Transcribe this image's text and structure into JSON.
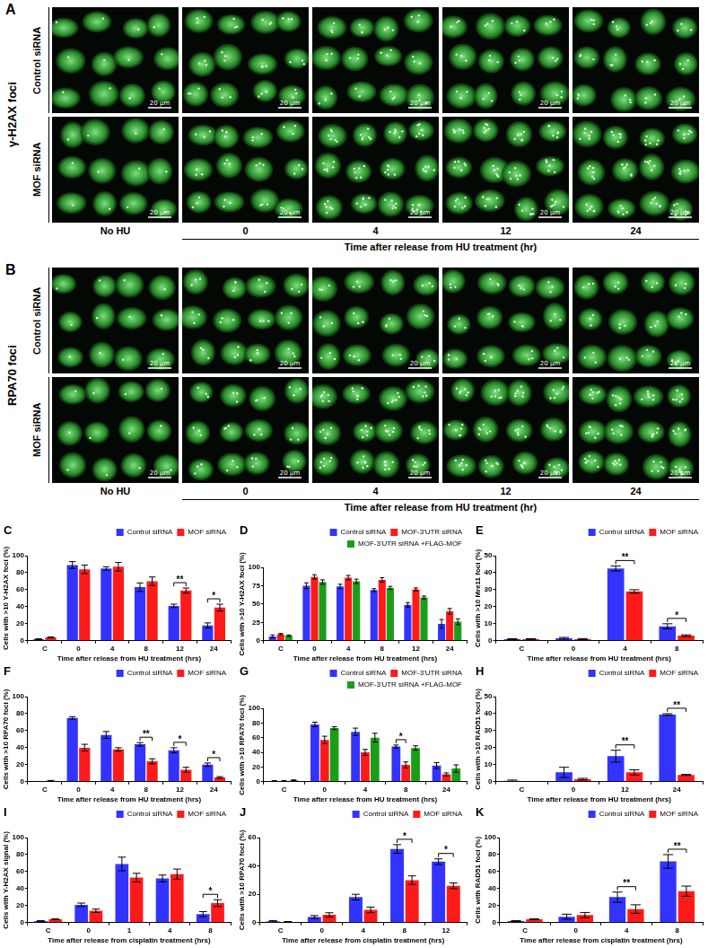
{
  "image_panels": [
    {
      "letter": "A",
      "title": "γ-H2AX foci",
      "rows": [
        "Control siRNA",
        "MOF siRNA"
      ],
      "columns": [
        "No HU",
        "0",
        "4",
        "12",
        "24"
      ],
      "xlabel": "Time after release from HU treatment (hr)",
      "scale_bar": "20 μm"
    },
    {
      "letter": "B",
      "title": "RPA70 foci",
      "rows": [
        "Control siRNA",
        "MOF siRNA"
      ],
      "columns": [
        "No HU",
        "0",
        "4",
        "12",
        "24"
      ],
      "xlabel": "Time after release from HU treatment (hr)",
      "scale_bar": "20 μm"
    }
  ],
  "chart_data": [
    {
      "letter": "C",
      "type": "bar",
      "xlabel": "Time after release from HU treatment (hrs)",
      "ylabel": "Cells with >10 Υ-H2AX foci (%)",
      "categories": [
        "C",
        "0",
        "4",
        "8",
        "12",
        "24"
      ],
      "ylim": [
        0,
        100
      ],
      "yticks": [
        0,
        20,
        40,
        60,
        80,
        100
      ],
      "grid": false,
      "legend": "upper right",
      "series": [
        {
          "name": "Control siRNA",
          "color": "#3333ff",
          "values": [
            2,
            89,
            85,
            63,
            41,
            18
          ],
          "errors": [
            0.5,
            4,
            2,
            5,
            2,
            3
          ]
        },
        {
          "name": "MOF siRNA",
          "color": "#ff1a1a",
          "values": [
            4,
            84,
            87,
            70,
            59,
            39
          ],
          "errors": [
            0.5,
            5,
            5,
            5,
            3,
            4
          ]
        }
      ],
      "significance": [
        {
          "category": "12",
          "text": "**"
        },
        {
          "category": "24",
          "text": "*"
        }
      ]
    },
    {
      "letter": "D",
      "type": "bar",
      "xlabel": "Time after release from HU treatment (hrs)",
      "ylabel": "Cells with >10 Υ-H2AX foci (%)",
      "categories": [
        "C",
        "0",
        "4",
        "8",
        "12",
        "24"
      ],
      "ylim": [
        0,
        100
      ],
      "yticks": [
        0,
        25,
        50,
        75,
        100
      ],
      "grid": false,
      "legend": "upper right",
      "series": [
        {
          "name": "Control siRNA",
          "color": "#3333ff",
          "values": [
            6,
            75,
            74,
            69,
            49,
            23
          ],
          "errors": [
            2,
            4,
            3,
            2,
            3,
            6
          ]
        },
        {
          "name": "MOF-3'UTR siRNA",
          "color": "#ff1a1a",
          "values": [
            9,
            87,
            86,
            83,
            70,
            40
          ],
          "errors": [
            1,
            3,
            3,
            3,
            2,
            4
          ]
        },
        {
          "name": "MOF-3'UTR siRNA +FLAG-MOF",
          "color": "#1a9e1a",
          "values": [
            7,
            80,
            81,
            72,
            59,
            26
          ],
          "errors": [
            1,
            3,
            3,
            2,
            2,
            4
          ]
        }
      ],
      "significance": []
    },
    {
      "letter": "E",
      "type": "bar",
      "xlabel": "Time after release from HU treatment (hrs)",
      "ylabel": "Cells with >10 Mre11 foci (%)",
      "categories": [
        "C",
        "0",
        "4",
        "8"
      ],
      "ylim": [
        0,
        50
      ],
      "yticks": [
        0,
        10,
        20,
        30,
        40,
        50
      ],
      "grid": false,
      "legend": "upper right",
      "series": [
        {
          "name": "Control siRNA",
          "color": "#3333ff",
          "values": [
            1,
            1.5,
            42.5,
            8.5
          ],
          "errors": [
            0.2,
            0.5,
            1.5,
            1.5
          ]
        },
        {
          "name": "MOF siRNA",
          "color": "#ff1a1a",
          "values": [
            1,
            1,
            29,
            3
          ],
          "errors": [
            0.2,
            0.3,
            1,
            0.5
          ]
        }
      ],
      "significance": [
        {
          "category": "4",
          "text": "**"
        },
        {
          "category": "8",
          "text": "*"
        }
      ]
    },
    {
      "letter": "F",
      "type": "bar",
      "xlabel": "Time after release from HU treatment (hrs)",
      "ylabel": "Cells with >10 RPA70 foci (%)",
      "categories": [
        "C",
        "0",
        "4",
        "8",
        "12",
        "24"
      ],
      "ylim": [
        0,
        100
      ],
      "yticks": [
        0,
        20,
        40,
        60,
        80,
        100
      ],
      "grid": false,
      "legend": "upper right",
      "series": [
        {
          "name": "Control siRNA",
          "color": "#3333ff",
          "values": [
            0,
            75,
            55,
            44,
            37,
            20
          ],
          "errors": [
            0,
            1.5,
            4,
            2,
            3,
            2
          ]
        },
        {
          "name": "MOF siRNA",
          "color": "#ff1a1a",
          "values": [
            1,
            40,
            38,
            24,
            14,
            5
          ],
          "errors": [
            0.5,
            4,
            2,
            3,
            3,
            1
          ]
        }
      ],
      "significance": [
        {
          "category": "8",
          "text": "**"
        },
        {
          "category": "12",
          "text": "*"
        },
        {
          "category": "24",
          "text": "*"
        }
      ]
    },
    {
      "letter": "G",
      "type": "bar",
      "xlabel": "Time after release from HU treatment (hrs)",
      "ylabel": "Cells with >10 RPA70 foci (%)",
      "categories": [
        "C",
        "0",
        "4",
        "8",
        "24"
      ],
      "ylim": [
        0,
        100
      ],
      "yticks": [
        0,
        20,
        40,
        60,
        80,
        100
      ],
      "grid": false,
      "legend": "upper right",
      "series": [
        {
          "name": "Control siRNA",
          "color": "#3333ff",
          "values": [
            1,
            78,
            68,
            48,
            22
          ],
          "errors": [
            0.5,
            3,
            5,
            2,
            4
          ]
        },
        {
          "name": "MOF-3'UTR siRNA",
          "color": "#ff1a1a",
          "values": [
            1,
            57,
            40,
            23,
            10
          ],
          "errors": [
            0.5,
            5,
            4,
            4,
            2
          ]
        },
        {
          "name": "MOF-3'UTR siRNA +FLAG-MOF",
          "color": "#1a9e1a",
          "values": [
            2,
            73,
            60,
            46,
            18
          ],
          "errors": [
            0.5,
            2,
            6,
            3,
            5
          ]
        }
      ],
      "significance": [
        {
          "category": "8",
          "text": "*"
        }
      ]
    },
    {
      "letter": "H",
      "type": "bar",
      "xlabel": "Time after release from HU treatment (hrs)",
      "ylabel": "Cells with >10 RAD51 foci (%)",
      "categories": [
        "C",
        "0",
        "12",
        "24"
      ],
      "ylim": [
        0,
        50
      ],
      "yticks": [
        0,
        10,
        20,
        30,
        40,
        50
      ],
      "grid": false,
      "legend": "upper right",
      "series": [
        {
          "name": "Control siRNA",
          "color": "#3333ff",
          "values": [
            0.5,
            5.5,
            15,
            39.5
          ],
          "errors": [
            0.5,
            3,
            3.5,
            0.5
          ]
        },
        {
          "name": "MOF siRNA",
          "color": "#ff1a1a",
          "values": [
            0,
            1.5,
            5.5,
            4
          ],
          "errors": [
            0,
            0.5,
            1.5,
            0.3
          ]
        }
      ],
      "significance": [
        {
          "category": "12",
          "text": "**"
        },
        {
          "category": "24",
          "text": "**"
        }
      ]
    },
    {
      "letter": "I",
      "type": "bar",
      "xlabel": "Time after release from cisplatin treatment (hrs)",
      "ylabel": "Cells with Υ-H2AX signal (%)",
      "categories": [
        "C",
        "0",
        "1",
        "4",
        "8"
      ],
      "ylim": [
        0,
        100
      ],
      "yticks": [
        0,
        20,
        40,
        60,
        80,
        100
      ],
      "grid": false,
      "legend": "upper right",
      "series": [
        {
          "name": "Control siRNA",
          "color": "#3333ff",
          "values": [
            2,
            21,
            69,
            52,
            10
          ],
          "errors": [
            0.5,
            2,
            8,
            4,
            3
          ]
        },
        {
          "name": "MOF siRNA",
          "color": "#ff1a1a",
          "values": [
            4,
            14,
            53,
            57,
            23
          ],
          "errors": [
            0.5,
            2,
            5,
            6,
            4
          ]
        }
      ],
      "significance": [
        {
          "category": "8",
          "text": "*"
        }
      ]
    },
    {
      "letter": "J",
      "type": "bar",
      "xlabel": "Time after release from cisplatin treatment (hrs)",
      "ylabel": "Cells with >10 RPA70 foci (%)",
      "categories": [
        "C",
        "0",
        "4",
        "8",
        "12"
      ],
      "ylim": [
        0,
        60
      ],
      "yticks": [
        0,
        20,
        40,
        60
      ],
      "grid": false,
      "legend": "upper right",
      "series": [
        {
          "name": "Control siRNA",
          "color": "#3333ff",
          "values": [
            1,
            4,
            18,
            52,
            43
          ],
          "errors": [
            0.5,
            1,
            2,
            3,
            2
          ]
        },
        {
          "name": "MOF siRNA",
          "color": "#ff1a1a",
          "values": [
            0.5,
            5.5,
            9,
            30,
            26
          ],
          "errors": [
            0.3,
            1.5,
            2,
            3,
            2
          ]
        }
      ],
      "significance": [
        {
          "category": "8",
          "text": "*"
        },
        {
          "category": "12",
          "text": "*"
        }
      ]
    },
    {
      "letter": "K",
      "type": "bar",
      "xlabel": "Time after release from cisplatin treatment (hrs)",
      "ylabel": "Cells with RAD51 foci (%)",
      "categories": [
        "C",
        "0",
        "4",
        "8"
      ],
      "ylim": [
        0,
        100
      ],
      "yticks": [
        0,
        20,
        40,
        60,
        80,
        100
      ],
      "grid": false,
      "legend": "upper right",
      "series": [
        {
          "name": "Control siRNA",
          "color": "#3333ff",
          "values": [
            2,
            7,
            30,
            72
          ],
          "errors": [
            0.5,
            3,
            6,
            8
          ]
        },
        {
          "name": "MOF siRNA",
          "color": "#ff1a1a",
          "values": [
            4,
            9,
            16,
            37
          ],
          "errors": [
            0.5,
            3,
            5,
            6
          ]
        }
      ],
      "significance": [
        {
          "category": "4",
          "text": "**"
        },
        {
          "category": "8",
          "text": "**"
        }
      ]
    }
  ]
}
